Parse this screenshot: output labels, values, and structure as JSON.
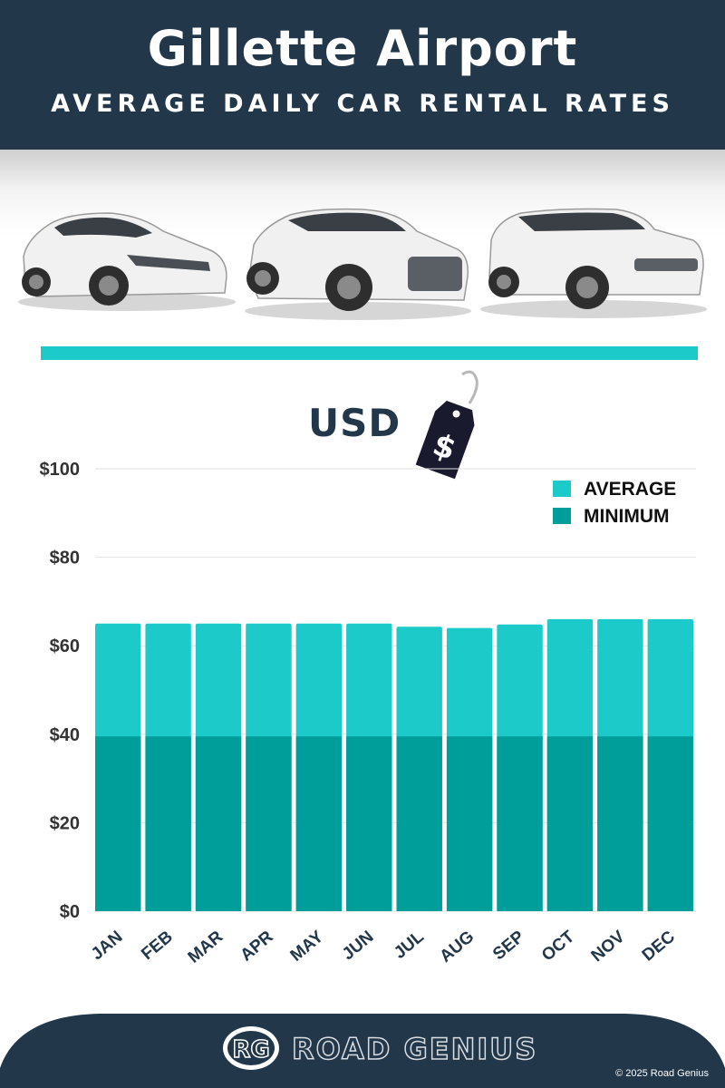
{
  "header": {
    "title": "Gillette Airport",
    "subtitle": "AVERAGE DAILY CAR RENTAL RATES"
  },
  "currency": {
    "label": "USD",
    "tag_symbol": "$",
    "icon": "price-tag-icon"
  },
  "colors": {
    "header_bg": "#22374a",
    "average": "#1ccbc9",
    "minimum": "#009e9a",
    "accent_rule": "#1ccbc9"
  },
  "chart_data": {
    "type": "bar",
    "stacked_overlay": true,
    "categories": [
      "JAN",
      "FEB",
      "MAR",
      "APR",
      "MAY",
      "JUN",
      "JUL",
      "AUG",
      "SEP",
      "OCT",
      "NOV",
      "DEC"
    ],
    "series": [
      {
        "name": "AVERAGE",
        "color": "#1ccbc9",
        "values": [
          65,
          65,
          65,
          65,
          65,
          65,
          64.3,
          64,
          64.8,
          66,
          66,
          66
        ]
      },
      {
        "name": "MINIMUM",
        "color": "#009e9a",
        "values": [
          39.5,
          39.5,
          39.5,
          39.5,
          39.5,
          39.5,
          39.5,
          39.5,
          39.5,
          39.5,
          39.5,
          39.5
        ]
      }
    ],
    "yticks": [
      "$0",
      "$20",
      "$40",
      "$60",
      "$80",
      "$100"
    ],
    "ytick_values": [
      0,
      20,
      40,
      60,
      80,
      100
    ],
    "ylim": [
      0,
      100
    ],
    "grid": true,
    "legend_position": "top-right"
  },
  "footer": {
    "logo_text": "RG",
    "brand": "ROAD GENIUS",
    "copyright": "© 2025 Road Genius"
  }
}
